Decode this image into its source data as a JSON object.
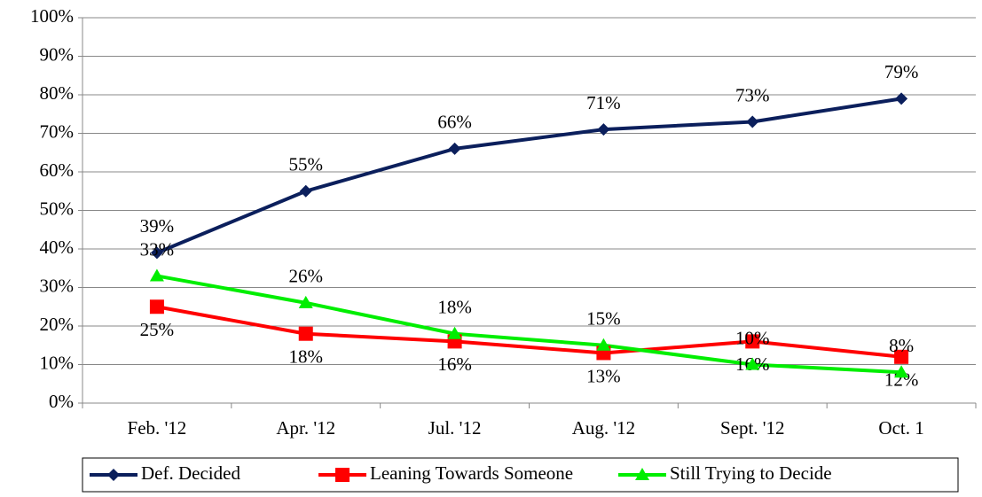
{
  "chart_data": {
    "type": "line",
    "categories": [
      "Feb. '12",
      "Apr. '12",
      "Jul. '12",
      "Aug. '12",
      "Sept. '12",
      "Oct. 1"
    ],
    "series": [
      {
        "name": "Def. Decided",
        "color": "#0b1f5c",
        "marker": "diamond",
        "values": [
          39,
          55,
          66,
          71,
          73,
          79
        ],
        "value_labels": [
          "39%",
          "55%",
          "66%",
          "71%",
          "73%",
          "79%"
        ]
      },
      {
        "name": "Leaning Towards Someone",
        "color": "#ff0000",
        "marker": "square",
        "values": [
          25,
          18,
          16,
          13,
          16,
          12
        ],
        "value_labels": [
          "25%",
          "18%",
          "16%",
          "13%",
          "16%",
          "12%"
        ]
      },
      {
        "name": "Still Trying to Decide",
        "color": "#00ee00",
        "marker": "triangle",
        "values": [
          33,
          26,
          18,
          15,
          10,
          8
        ],
        "value_labels": [
          "33%",
          "26%",
          "18%",
          "15%",
          "10%",
          "8%"
        ]
      }
    ],
    "ylim": [
      0,
      100
    ],
    "yticks": [
      {
        "value": 0,
        "label": "0%"
      },
      {
        "value": 10,
        "label": "10%"
      },
      {
        "value": 20,
        "label": "20%"
      },
      {
        "value": 30,
        "label": "30%"
      },
      {
        "value": 40,
        "label": "40%"
      },
      {
        "value": 50,
        "label": "50%"
      },
      {
        "value": 60,
        "label": "60%"
      },
      {
        "value": 70,
        "label": "70%"
      },
      {
        "value": 80,
        "label": "80%"
      },
      {
        "value": 90,
        "label": "90%"
      },
      {
        "value": 100,
        "label": "100%"
      }
    ],
    "grid": true,
    "legend": "bottom"
  }
}
